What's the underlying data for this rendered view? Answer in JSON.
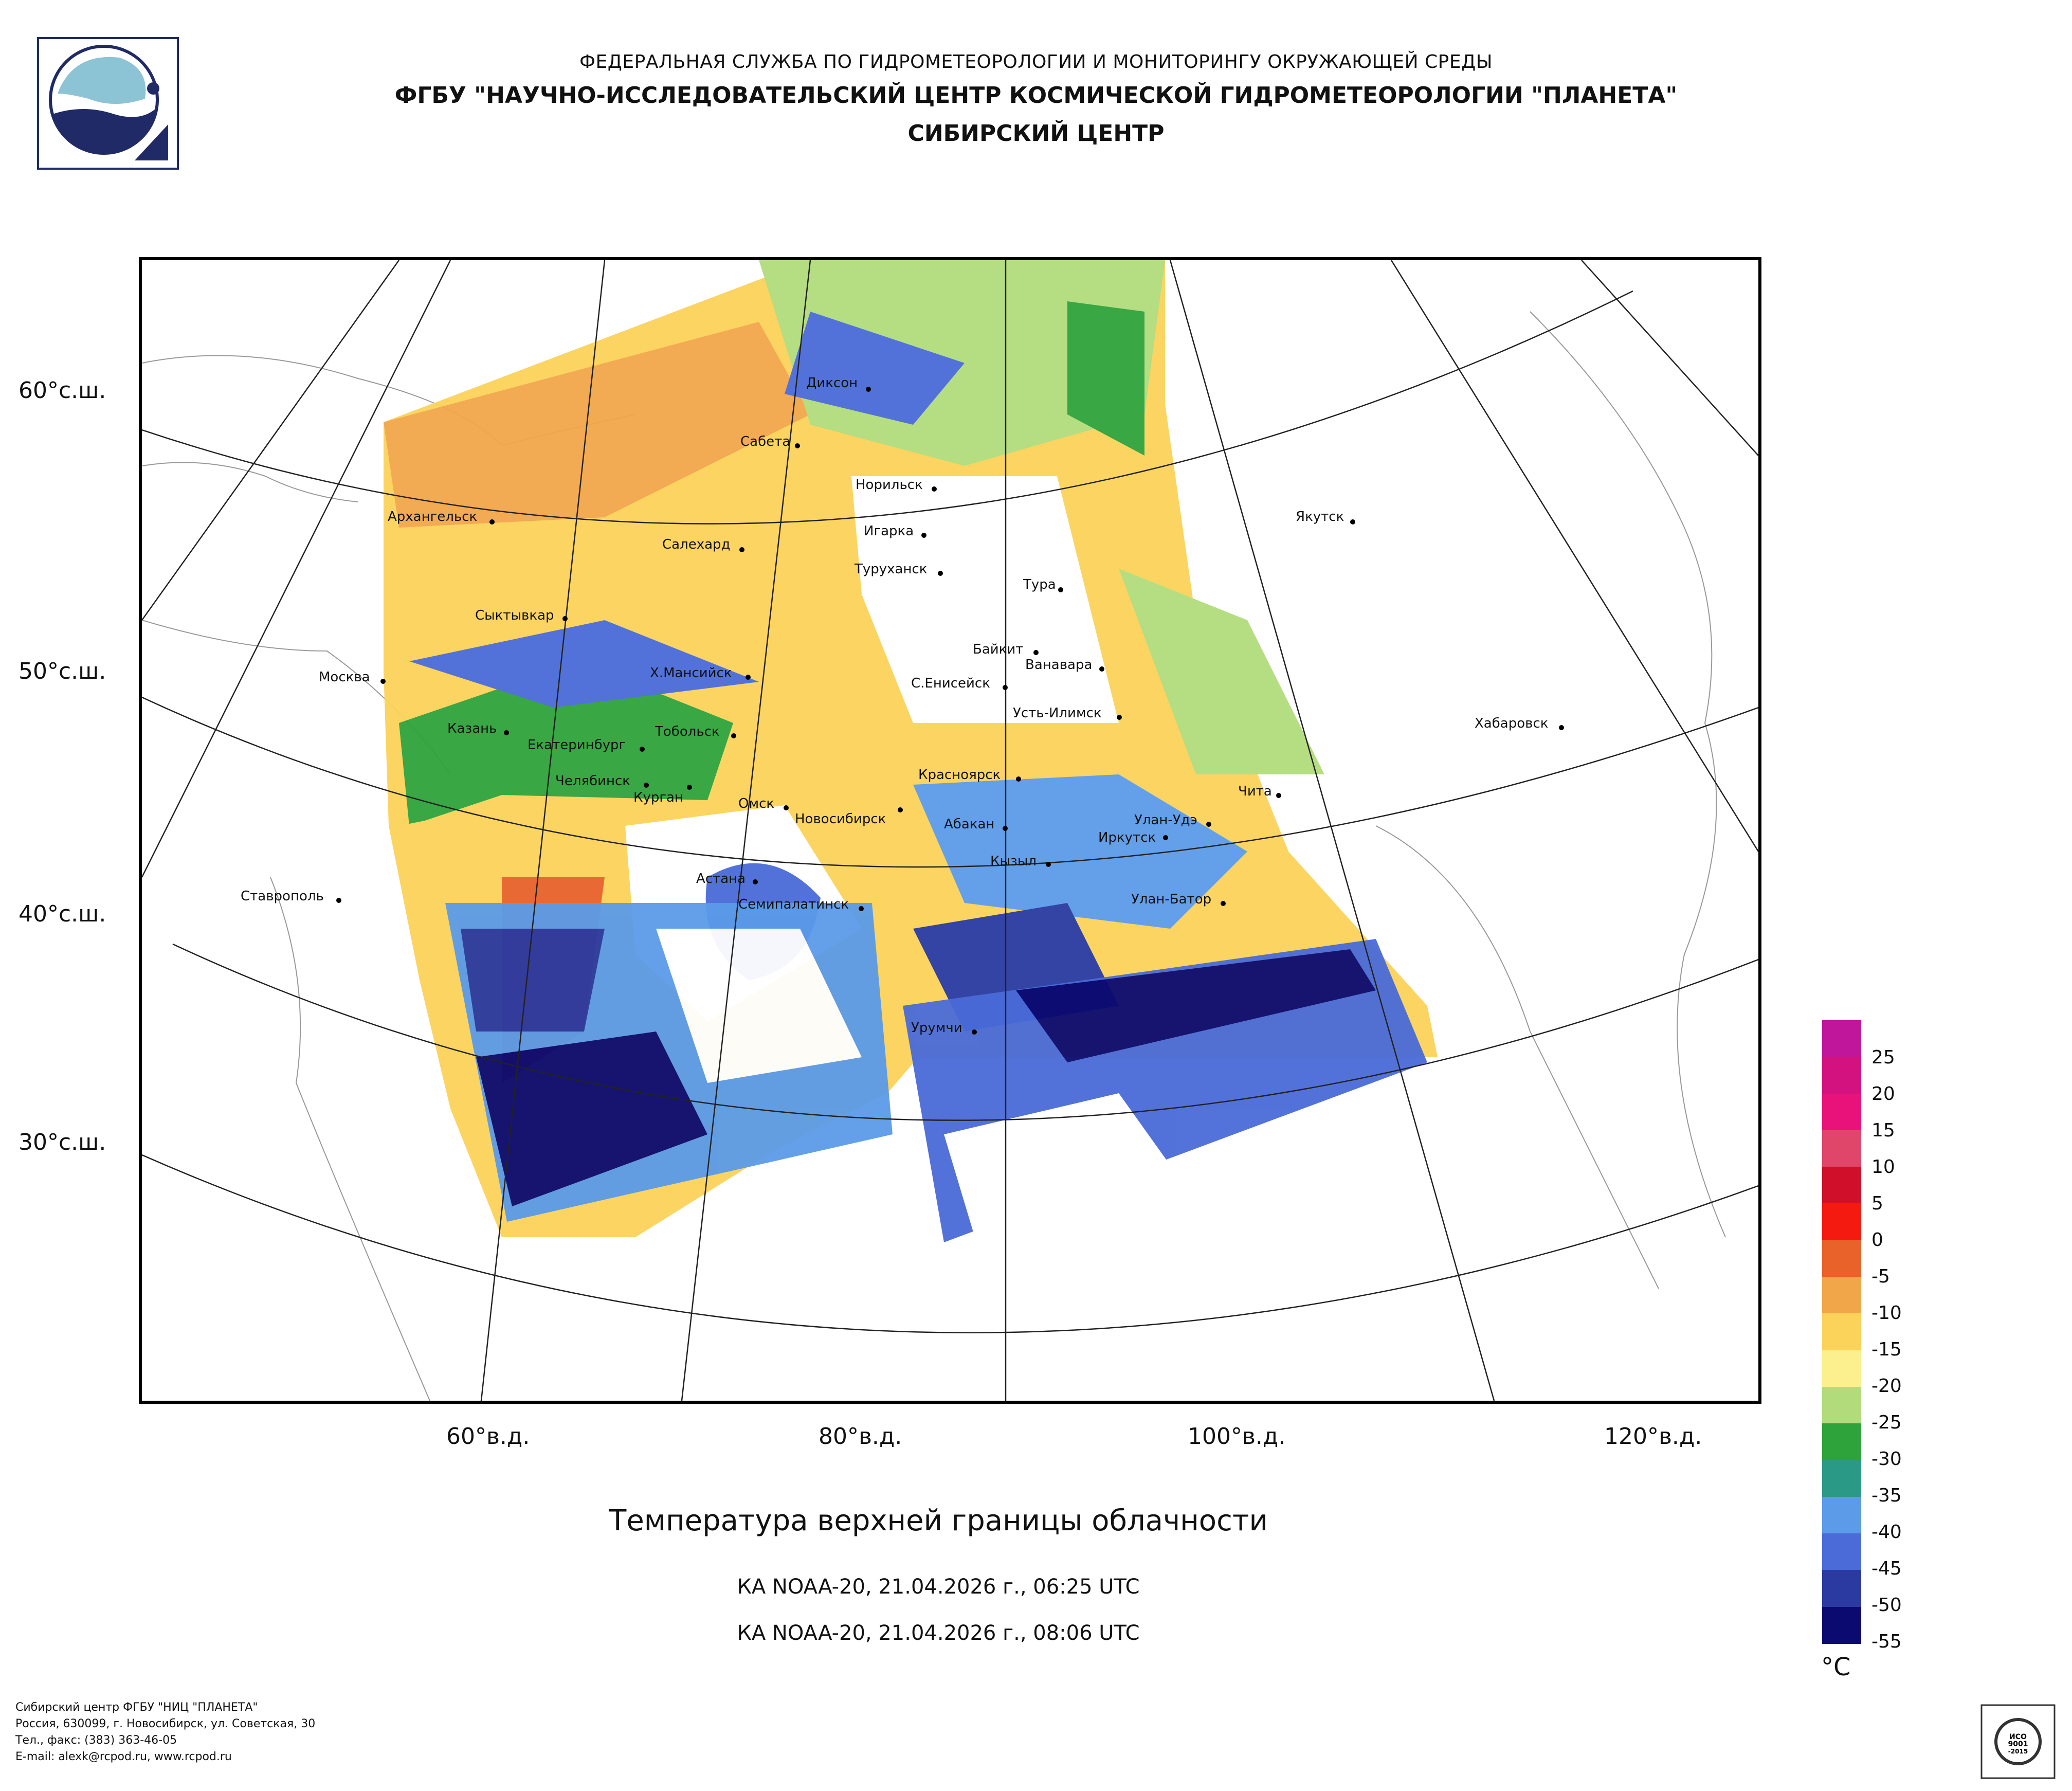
{
  "header": {
    "line1": "ФЕДЕРАЛЬНАЯ СЛУЖБА ПО ГИДРОМЕТЕОРОЛОГИИ И МОНИТОРИНГУ ОКРУЖАЮЩЕЙ СРЕДЫ",
    "line2": "ФГБУ \"НАУЧНО-ИССЛЕДОВАТЕЛЬСКИЙ ЦЕНТР КОСМИЧЕСКОЙ ГИДРОМЕТЕОРОЛОГИИ \"ПЛАНЕТА\"",
    "line3": "СИБИРСКИЙ ЦЕНТР"
  },
  "map": {
    "lat_labels": [
      "60°с.ш.",
      "50°с.ш.",
      "40°с.ш.",
      "30°с.ш."
    ],
    "lon_labels": [
      "60°в.д.",
      "80°в.д.",
      "100°в.д.",
      "120°в.д."
    ],
    "cities": [
      "Диксон",
      "Сабета",
      "Норильск",
      "Архангельск",
      "Салехард",
      "Игарка",
      "Туруханск",
      "Якутск",
      "Тура",
      "Сыктывкар",
      "Байкит",
      "Ванавара",
      "Москва",
      "Х.Мансийск",
      "С.Енисейск",
      "Усть-Илимск",
      "Хабаровск",
      "Казань",
      "Тобольск",
      "Екатеринбург",
      "Красноярск",
      "Чита",
      "Челябинск",
      "Курган",
      "Омск",
      "Новосибирск",
      "Абакан",
      "Улан-Удэ",
      "Иркутск",
      "Кызыл",
      "Астана",
      "Ставрополь",
      "Семипалатинск",
      "Улан-Батор",
      "Урумчи"
    ]
  },
  "title": "Температура верхней границы облачности",
  "satellite_passes": [
    "КА NOAA-20, 21.04.2026 г., 06:25 UTC",
    "КА NOAA-20, 21.04.2026 г., 08:06 UTC"
  ],
  "legend": {
    "unit": "°C",
    "ticks": [
      "25",
      "20",
      "15",
      "10",
      "5",
      "0",
      "-5",
      "-10",
      "-15",
      "-20",
      "-25",
      "-30",
      "-35",
      "-40",
      "-45",
      "-50",
      "-55"
    ],
    "colors": [
      "#c0169b",
      "#d4127f",
      "#e8127a",
      "#e0456a",
      "#d0102a",
      "#f51a0f",
      "#e8622a",
      "#f2a64a",
      "#fbd25a",
      "#fbef8e",
      "#b2dc7c",
      "#2ea33b",
      "#2a9a86",
      "#5b9be8",
      "#4a6bd8",
      "#2a3aa0",
      "#0a0a70"
    ]
  },
  "footer": [
    "Сибирский центр ФГБУ \"НИЦ \"ПЛАНЕТА\"",
    "Россия, 630099, г. Новосибирск, ул. Советская, 30",
    "Тел., факс: (383) 363-46-05",
    "E-mail: alexk@rcpod.ru, www.rcpod.ru"
  ]
}
